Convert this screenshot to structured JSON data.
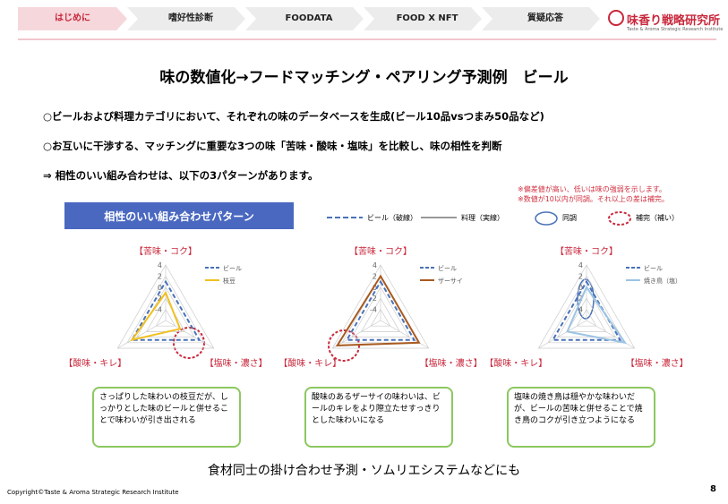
{
  "nav": {
    "tabs": [
      "はじめに",
      "嗜好性診断",
      "FOODATA",
      "FOOD X NFT",
      "質疑応答"
    ],
    "logo": "味香り戦略研究所",
    "logo_sub": "Taste & Aroma Strategic Research Institute"
  },
  "title": "味の数値化→フードマッチング・ペアリング予測例　ビール",
  "bullets": [
    "○ビールおよび料理カテゴリにおいて、それぞれの味のデータベースを生成(ビール10品vsつまみ50品など)",
    "○お互いに干渉する、マッチングに重要な3つの味「苦味・酸味・塩味」を比較し、味の相性を判断",
    "⇒ 相性のいい組み合わせは、以下の3パターンがあります。"
  ],
  "notes": [
    "※偏差値が高い、低いは味の強弱を示します。",
    "※数値が10以内が同調。それ以上の差は補完。"
  ],
  "banner": "相性のいい組み合わせパターン",
  "legend": [
    "ビール（破線）",
    "料理（実線）",
    "同調",
    "補完（補い）"
  ],
  "chart_data": [
    {
      "type": "radar",
      "categories": [
        "【苦味・コク】",
        "【塩味・濃さ】",
        "【酸味・キレ】"
      ],
      "rlim": [
        -6,
        4
      ],
      "rticks": [
        4,
        2,
        0,
        -2,
        -4
      ],
      "series": [
        {
          "name": "ビール",
          "color": "#4a72b8",
          "values": [
            1,
            1,
            1
          ]
        },
        {
          "name": "枝豆",
          "color": "#f0c020",
          "values": [
            -1,
            -3,
            1
          ]
        }
      ]
    },
    {
      "type": "radar",
      "categories": [
        "【苦味・コク】",
        "【塩味・濃さ】",
        "【酸味・キレ】"
      ],
      "rlim": [
        -6,
        4
      ],
      "rticks": [
        4,
        2,
        0,
        -2,
        -4
      ],
      "series": [
        {
          "name": "ビール",
          "color": "#4a72b8",
          "values": [
            1,
            1,
            1
          ]
        },
        {
          "name": "ザーサイ",
          "color": "#a85a20",
          "values": [
            2,
            2,
            3
          ]
        }
      ]
    },
    {
      "type": "radar",
      "categories": [
        "【苦味・コク】",
        "【塩味・濃さ】",
        "【酸味・キレ】"
      ],
      "rlim": [
        -6,
        4
      ],
      "rticks": [
        4,
        2,
        0,
        -2,
        -4
      ],
      "series": [
        {
          "name": "ビール",
          "color": "#4a72b8",
          "values": [
            1,
            1,
            1
          ]
        },
        {
          "name": "焼き鳥（塩）",
          "color": "#9cc4e4",
          "values": [
            0,
            2,
            -2
          ]
        }
      ]
    }
  ],
  "captions": [
    "さっぱりした味わいの枝豆だが、しっかりとした味のビールと併せることで味わいが引き出される",
    "酸味のあるザーサイの味わいは、ビールのキレをより際立たせすっきりとした味わいになる",
    "塩味の焼き鳥は穏やかな味わいだが、ビールの苦味と併せることで焼き鳥のコクが引き立つようになる"
  ],
  "footer": "食材同士の掛け合わせ予測・ソムリエシステムなどにも",
  "copyright": "Copyright©Taste & Aroma Strategic Research Institute",
  "page": "8"
}
